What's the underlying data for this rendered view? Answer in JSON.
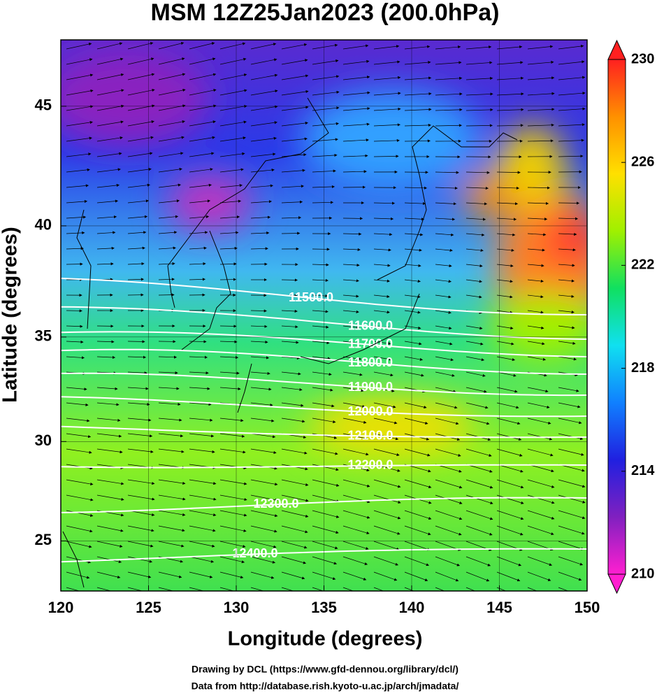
{
  "chart_data": {
    "type": "contour-map",
    "title": "MSM 12Z25Jan2023 (200.0hPa)",
    "x_label": "Longitude (degrees)",
    "y_label": "Latitude  (degrees)",
    "projection": "mercator",
    "xlim": [
      120,
      150
    ],
    "ylim": [
      22.4,
      47.6
    ],
    "xticks": [
      120,
      125,
      130,
      135,
      140,
      145,
      150
    ],
    "yticks": [
      25,
      30,
      35,
      40,
      45
    ],
    "colorbar": {
      "lim": [
        210,
        230
      ],
      "ticks": [
        210,
        214,
        218,
        222,
        226,
        230
      ],
      "colors": [
        "#ff1fd0",
        "#8020c0",
        "#2020e0",
        "#1080ff",
        "#10e0f0",
        "#10e060",
        "#a0f000",
        "#ffe000",
        "#ff9000",
        "#ff2020"
      ]
    },
    "contour_levels": [
      {
        "value": 11500,
        "label": "11500.0"
      },
      {
        "value": 11600,
        "label": "11600.0"
      },
      {
        "value": 11700,
        "label": "11700.0"
      },
      {
        "value": 11800,
        "label": "11800.0"
      },
      {
        "value": 11900,
        "label": "11900.0"
      },
      {
        "value": 12000,
        "label": "12000.0"
      },
      {
        "value": 12100,
        "label": "12100.0"
      },
      {
        "value": 12200,
        "label": "12200.0"
      },
      {
        "value": 12300,
        "label": "12300.0"
      },
      {
        "value": 12400,
        "label": "12400.0"
      }
    ],
    "credits": [
      "Drawing by DCL (https://www.gfd-dennou.org/library/dcl/)",
      "Data from http://database.rish.kyoto-u.ac.jp/arch/jmadata/"
    ]
  }
}
